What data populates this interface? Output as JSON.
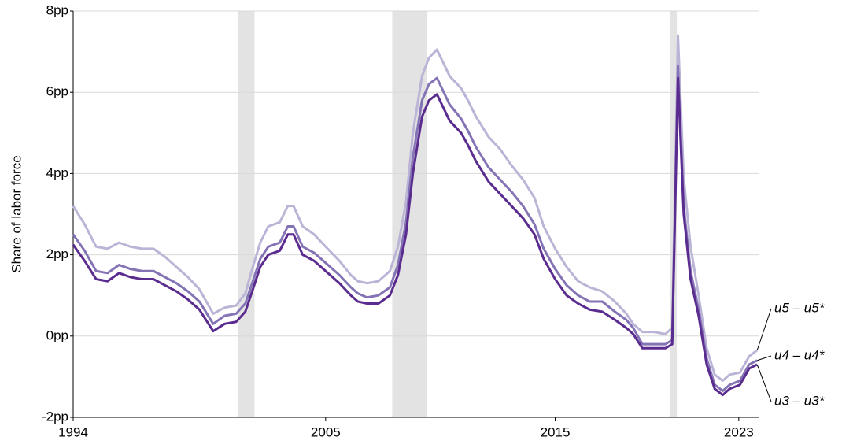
{
  "chart_data": {
    "type": "line",
    "ylabel": "Share of labor force",
    "xlim": [
      1994,
      2024
    ],
    "xticks": [
      1994,
      2005,
      2015,
      2023
    ],
    "ylim": [
      -2,
      8
    ],
    "yticks": [
      {
        "value": -2,
        "label": "-2pp"
      },
      {
        "value": 0,
        "label": "0pp"
      },
      {
        "value": 2,
        "label": "2pp"
      },
      {
        "value": 4,
        "label": "4pp"
      },
      {
        "value": 6,
        "label": "6pp"
      },
      {
        "value": 8,
        "label": "8pp"
      }
    ],
    "grid": true,
    "recessions": [
      [
        2001.2,
        2001.9
      ],
      [
        2007.9,
        2009.4
      ],
      [
        2020.0,
        2020.3
      ]
    ],
    "recession_color": "#e3e3e3",
    "x": [
      1994,
      1994.5,
      1995,
      1995.5,
      1996,
      1996.5,
      1997,
      1997.5,
      1998,
      1998.5,
      1999,
      1999.5,
      2000.1,
      2000.6,
      2001.1,
      2001.5,
      2001.8,
      2002.15,
      2002.5,
      2003,
      2003.35,
      2003.6,
      2004,
      2004.5,
      2005,
      2005.6,
      2006.1,
      2006.4,
      2006.8,
      2007.3,
      2007.8,
      2008.15,
      2008.5,
      2008.8,
      2009.2,
      2009.5,
      2009.85,
      2010.4,
      2010.9,
      2011.2,
      2011.55,
      2012.1,
      2012.6,
      2013.1,
      2013.6,
      2014.1,
      2014.5,
      2015,
      2015.5,
      2016,
      2016.5,
      2017.05,
      2017.6,
      2018.1,
      2018.4,
      2018.8,
      2019.3,
      2019.8,
      2020.1,
      2020.35,
      2020.6,
      2020.9,
      2021.25,
      2021.6,
      2021.95,
      2022.3,
      2022.6,
      2023.05,
      2023.45,
      2023.8
    ],
    "series": [
      {
        "name": "u5 – u5*",
        "color": "#bcb4d6",
        "values": [
          3.2,
          2.75,
          2.2,
          2.15,
          2.3,
          2.2,
          2.15,
          2.15,
          1.95,
          1.7,
          1.45,
          1.15,
          0.55,
          0.7,
          0.75,
          1.05,
          1.65,
          2.3,
          2.7,
          2.8,
          3.2,
          3.2,
          2.7,
          2.5,
          2.2,
          1.85,
          1.5,
          1.35,
          1.3,
          1.35,
          1.6,
          2.2,
          3.3,
          5.0,
          6.4,
          6.85,
          7.05,
          6.4,
          6.1,
          5.8,
          5.4,
          4.9,
          4.6,
          4.2,
          3.85,
          3.4,
          2.7,
          2.15,
          1.7,
          1.35,
          1.2,
          1.1,
          0.85,
          0.55,
          0.3,
          0.1,
          0.1,
          0.05,
          0.2,
          7.4,
          3.9,
          2.2,
          1.0,
          -0.3,
          -0.95,
          -1.1,
          -0.95,
          -0.9,
          -0.5,
          -0.35
        ]
      },
      {
        "name": "u4 – u4*",
        "color": "#8473b5",
        "values": [
          2.5,
          2.1,
          1.6,
          1.55,
          1.75,
          1.65,
          1.6,
          1.6,
          1.45,
          1.3,
          1.1,
          0.85,
          0.3,
          0.5,
          0.55,
          0.8,
          1.3,
          1.9,
          2.2,
          2.3,
          2.7,
          2.7,
          2.2,
          2.05,
          1.8,
          1.5,
          1.2,
          1.05,
          0.95,
          1.0,
          1.2,
          1.75,
          2.8,
          4.4,
          5.8,
          6.2,
          6.35,
          5.7,
          5.35,
          5.05,
          4.65,
          4.15,
          3.85,
          3.55,
          3.2,
          2.75,
          2.15,
          1.65,
          1.25,
          1.0,
          0.85,
          0.85,
          0.6,
          0.4,
          0.2,
          -0.2,
          -0.2,
          -0.2,
          -0.1,
          6.65,
          3.2,
          1.6,
          0.65,
          -0.55,
          -1.2,
          -1.35,
          -1.2,
          -1.1,
          -0.7,
          -0.6
        ]
      },
      {
        "name": "u3 – u3*",
        "color": "#5b2c8f",
        "values": [
          2.25,
          1.85,
          1.4,
          1.35,
          1.55,
          1.45,
          1.4,
          1.4,
          1.25,
          1.1,
          0.9,
          0.65,
          0.12,
          0.3,
          0.35,
          0.6,
          1.1,
          1.7,
          2.0,
          2.1,
          2.5,
          2.5,
          2.0,
          1.85,
          1.6,
          1.3,
          1.0,
          0.85,
          0.8,
          0.8,
          1.0,
          1.5,
          2.5,
          4.0,
          5.4,
          5.8,
          5.95,
          5.3,
          5.0,
          4.7,
          4.3,
          3.8,
          3.5,
          3.2,
          2.9,
          2.5,
          1.9,
          1.4,
          1.0,
          0.8,
          0.65,
          0.6,
          0.4,
          0.2,
          0.05,
          -0.3,
          -0.3,
          -0.3,
          -0.2,
          6.35,
          3.0,
          1.4,
          0.5,
          -0.7,
          -1.3,
          -1.45,
          -1.3,
          -1.2,
          -0.8,
          -0.7
        ]
      }
    ]
  }
}
